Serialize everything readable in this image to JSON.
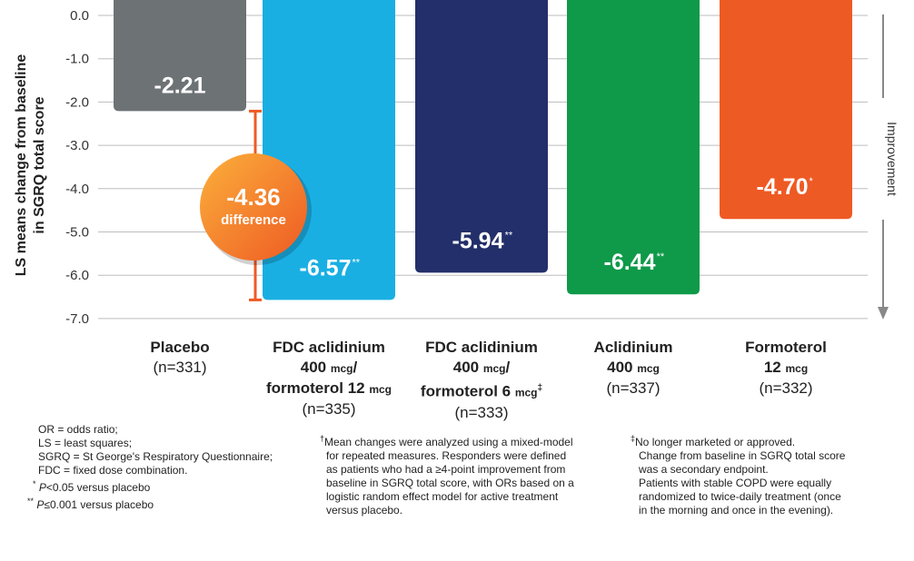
{
  "chart_data": {
    "type": "bar",
    "ylabel_lines": [
      "LS means change from baseline",
      "in SGRQ total score"
    ],
    "ylim": [
      -7,
      0
    ],
    "yticks": [
      0,
      -1,
      -2,
      -3,
      -4,
      -5,
      -6,
      -7
    ],
    "ytick_labels": [
      "0.0",
      "-1.0",
      "-2.0",
      "-3.0",
      "-4.0",
      "-5.0",
      "-6.0",
      "-7.0"
    ],
    "grid": true,
    "improvement_label": "Improvement",
    "categories": [
      {
        "name": "Placebo",
        "dose": "",
        "dose2": "",
        "n": "(n=331)",
        "value": -2.21,
        "label": "-2.21",
        "stars": "",
        "color": "#6d7275"
      },
      {
        "name": "FDC aclidinium",
        "dose": "400 mcg/",
        "dose2": "formoterol 12 mcg",
        "n": "(n=335)",
        "value": -6.57,
        "label": "-6.57",
        "stars": "**",
        "color": "#1aafe3"
      },
      {
        "name": "FDC aclidinium",
        "dose": "400 mcg/",
        "dose2": "formoterol 6 mcg",
        "dose2_mark": "‡",
        "n": "(n=333)",
        "value": -5.94,
        "label": "-5.94",
        "stars": "**",
        "color": "#232f6a"
      },
      {
        "name": "Aclidinium",
        "dose": "400 mcg",
        "dose2": "",
        "n": "(n=337)",
        "value": -6.44,
        "label": "-6.44",
        "stars": "**",
        "color": "#0e9a49"
      },
      {
        "name": "Formoterol",
        "dose": "12 mcg",
        "dose2": "",
        "n": "(n=332)",
        "value": -4.7,
        "label": "-4.70",
        "stars": "*",
        "color": "#ee5a24"
      }
    ],
    "annotation": {
      "value": "-4.36",
      "word": "difference",
      "from": -2.21,
      "to": -6.57,
      "color": "#ee5a24"
    }
  },
  "footnotes": {
    "left": [
      "OR = odds ratio;",
      "LS = least squares;",
      "SGRQ = St George's Respiratory Questionnaire;",
      "FDC = fixed dose combination."
    ],
    "p1_mark": "*",
    "p1_italic": "P",
    "p1_text": "<0.05 versus placebo",
    "p2_mark": "**",
    "p2_italic": "P",
    "p2_text": "≤0.001 versus placebo",
    "middle_mark": "†",
    "middle": [
      "Mean changes were analyzed using a mixed-model",
      "for repeated measures. Responders were defined",
      "as patients who had a ≥4-point improvement from",
      "baseline in SGRQ total score, with ORs based on a",
      "logistic random effect model for active treatment",
      "versus placebo."
    ],
    "right_mark": "‡",
    "right": [
      "No longer marketed or approved.",
      "Change from baseline in SGRQ total score",
      "was a secondary endpoint.",
      "Patients with stable COPD were equally",
      "randomized to twice-daily treatment (once",
      "in the morning and once in the evening)."
    ]
  }
}
